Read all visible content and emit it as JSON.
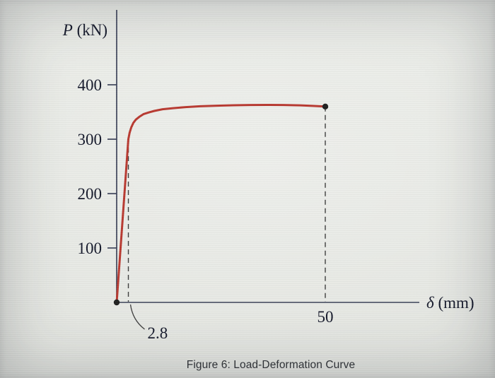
{
  "page": {
    "background": "#e7e9e4",
    "caption": "Figure 6: Load-Deformation Curve"
  },
  "chart_data": {
    "type": "line",
    "title": "Figure 6: Load-Deformation Curve",
    "xlabel": "δ (mm)",
    "ylabel": "P (kN)",
    "xlim": [
      0,
      58
    ],
    "ylim": [
      0,
      450
    ],
    "yticks": [
      100,
      200,
      300,
      400
    ],
    "xticks": [
      50
    ],
    "grid": false,
    "legend": false,
    "axis_color": "#3b4158",
    "text_color": "#14182a",
    "dash_color": "#3d3d3d",
    "marker_color": "#1f1f1f",
    "x_annotation": {
      "label": "2.8",
      "x": 2.8
    },
    "yield_point": {
      "x": 2.8,
      "y": 300
    },
    "end_point": {
      "x": 50,
      "y": 360
    },
    "dashed_guides": [
      {
        "x": 2.8,
        "y": 300
      },
      {
        "x": 50,
        "y": 360
      }
    ],
    "point_markers": [
      {
        "x": 0,
        "y": 0
      },
      {
        "x": 50,
        "y": 360
      }
    ],
    "series": [
      {
        "name": "load-deformation-curve",
        "color": "#b8382f",
        "points": [
          [
            0,
            0
          ],
          [
            2.8,
            300
          ],
          [
            3.1,
            312
          ],
          [
            3.5,
            322
          ],
          [
            4.0,
            330
          ],
          [
            4.6,
            336
          ],
          [
            5.4,
            341
          ],
          [
            6.4,
            346
          ],
          [
            7.6,
            349
          ],
          [
            9,
            352
          ],
          [
            11,
            355
          ],
          [
            13.5,
            357
          ],
          [
            16.5,
            359
          ],
          [
            20,
            360.5
          ],
          [
            24,
            361.5
          ],
          [
            28,
            362.3
          ],
          [
            32,
            362.8
          ],
          [
            36,
            363
          ],
          [
            40,
            362.8
          ],
          [
            44,
            362.2
          ],
          [
            47,
            361.2
          ],
          [
            50,
            360
          ]
        ]
      }
    ]
  }
}
